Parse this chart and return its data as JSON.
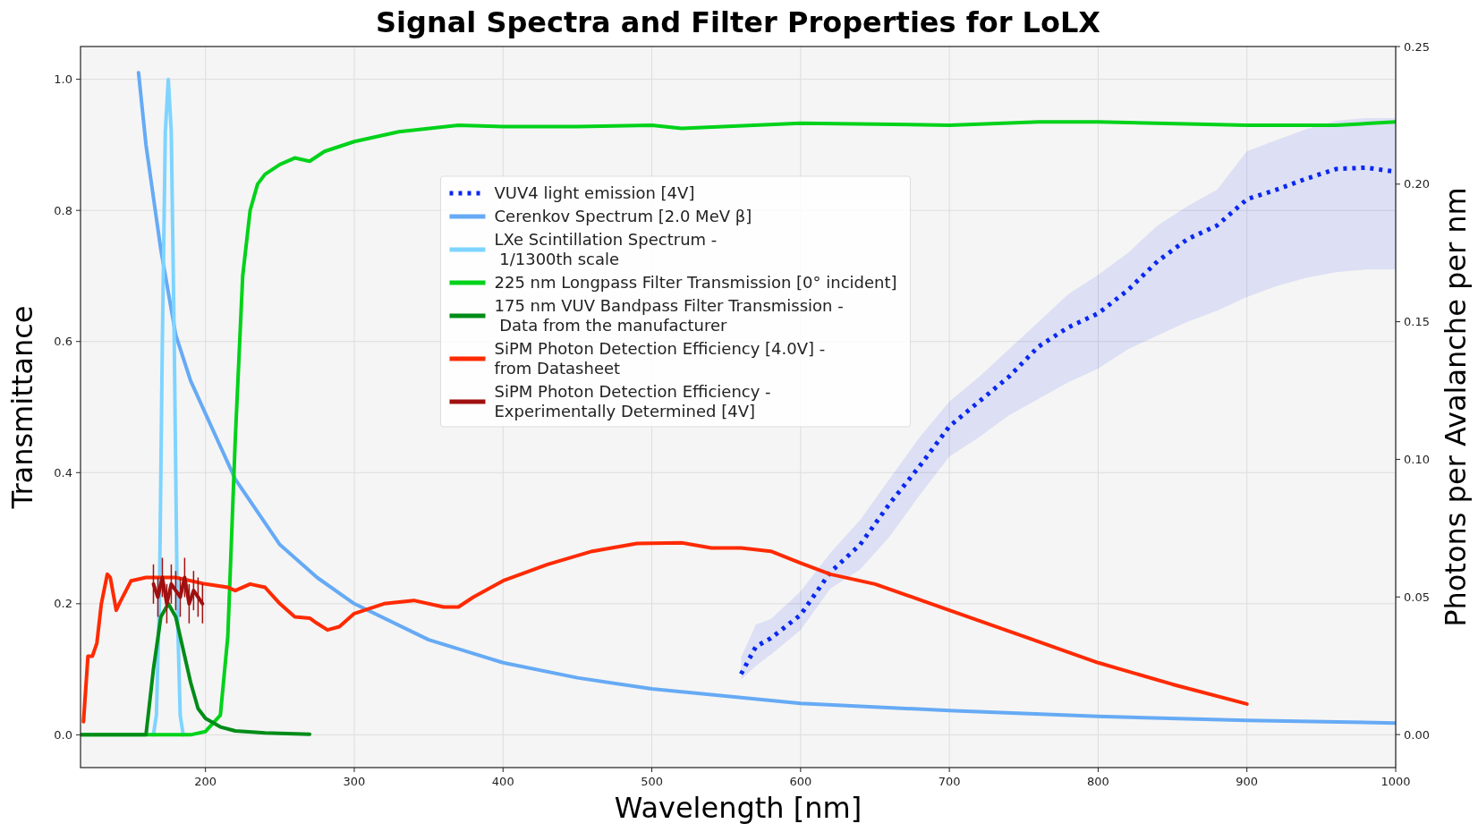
{
  "chart_data": {
    "type": "line",
    "title": "Signal Spectra and Filter Properties for LoLX",
    "xlabel": "Wavelength [nm]",
    "ylabel": "Transmittance",
    "y2label": "Photons per Avalanche per nm",
    "xlim": [
      116,
      1000
    ],
    "xticks": [
      200,
      300,
      400,
      500,
      600,
      700,
      800,
      900,
      1000
    ],
    "ylim": [
      -0.05,
      1.05
    ],
    "yticks": [
      {
        "value": 0,
        "label": "0.0"
      },
      {
        "value": 0.2,
        "label": "0.2"
      },
      {
        "value": 0.4,
        "label": "0.4"
      },
      {
        "value": 0.6,
        "label": "0.6"
      },
      {
        "value": 0.8,
        "label": "0.8"
      },
      {
        "value": 1,
        "label": "1.0"
      }
    ],
    "y2lim": [
      -0.012,
      0.25
    ],
    "y2ticks": [
      {
        "value": 0,
        "label": "0.00"
      },
      {
        "value": 0.05,
        "label": "0.05"
      },
      {
        "value": 0.1,
        "label": "0.10"
      },
      {
        "value": 0.15,
        "label": "0.15"
      },
      {
        "value": 0.2,
        "label": "0.20"
      },
      {
        "value": 0.25,
        "label": "0.25"
      }
    ],
    "grid": true,
    "legend": "top",
    "series": [
      {
        "name": "VUV4 light emission [4V]",
        "color": "#0a28f0",
        "axis": "y2",
        "line_style": "dotted",
        "x": [
          560,
          570,
          580,
          600,
          620,
          640,
          660,
          680,
          700,
          720,
          740,
          760,
          780,
          800,
          820,
          840,
          860,
          880,
          900,
          920,
          940,
          960,
          980,
          1000
        ],
        "values": [
          0.022,
          0.032,
          0.035,
          0.0435,
          0.059,
          0.069,
          0.084,
          0.0975,
          0.112,
          0.121,
          0.13,
          0.141,
          0.148,
          0.153,
          0.1615,
          0.172,
          0.18,
          0.185,
          0.1945,
          0.198,
          0.202,
          0.2055,
          0.206,
          0.2045
        ],
        "lower": [
          0.02,
          0.025,
          0.029,
          0.038,
          0.053,
          0.06,
          0.072,
          0.087,
          0.101,
          0.108,
          0.116,
          0.122,
          0.128,
          0.133,
          0.14,
          0.145,
          0.15,
          0.154,
          0.159,
          0.163,
          0.166,
          0.168,
          0.169,
          0.169
        ],
        "upper": [
          0.028,
          0.04,
          0.042,
          0.052,
          0.066,
          0.078,
          0.093,
          0.108,
          0.121,
          0.13,
          0.14,
          0.15,
          0.16,
          0.167,
          0.175,
          0.185,
          0.192,
          0.198,
          0.212,
          0.216,
          0.22,
          0.223,
          0.224,
          0.224
        ]
      },
      {
        "name": "Cerenkov Spectrum [2.0 MeV β]",
        "color": "#66aaf5",
        "x": [
          155,
          160,
          170,
          180,
          190,
          200,
          220,
          250,
          275,
          300,
          350,
          400,
          450,
          500,
          600,
          700,
          800,
          900,
          1000
        ],
        "values": [
          1.01,
          0.9,
          0.74,
          0.61,
          0.54,
          0.49,
          0.39,
          0.29,
          0.24,
          0.2,
          0.145,
          0.11,
          0.087,
          0.07,
          0.048,
          0.037,
          0.028,
          0.022,
          0.018
        ]
      },
      {
        "name": "LXe Scintillation Spectrum  -\n 1/1300th scale",
        "color": "#7fd4ff",
        "x": [
          165,
          167,
          169,
          171,
          173,
          175,
          177,
          179,
          181,
          183,
          185
        ],
        "values": [
          0,
          0.03,
          0.2,
          0.6,
          0.92,
          1.0,
          0.92,
          0.6,
          0.2,
          0.03,
          0
        ]
      },
      {
        "name": "225 nm Longpass Filter Transmission [0° incident]",
        "color": "#00d21a",
        "x": [
          116,
          190,
          200,
          210,
          215,
          220,
          225,
          230,
          235,
          240,
          250,
          260,
          270,
          280,
          300,
          330,
          370,
          400,
          450,
          500,
          520,
          600,
          700,
          760,
          800,
          900,
          960,
          1000
        ],
        "values": [
          0,
          0,
          0.005,
          0.03,
          0.15,
          0.45,
          0.7,
          0.8,
          0.84,
          0.855,
          0.87,
          0.88,
          0.875,
          0.89,
          0.905,
          0.92,
          0.93,
          0.928,
          0.928,
          0.93,
          0.925,
          0.933,
          0.93,
          0.935,
          0.935,
          0.93,
          0.93,
          0.935
        ]
      },
      {
        "name": "175 nm VUV Bandpass Filter Transmission -\n Data from the manufacturer",
        "color": "#008c18",
        "x": [
          116,
          160,
          165,
          170,
          175,
          180,
          185,
          190,
          195,
          200,
          210,
          220,
          240,
          270
        ],
        "values": [
          0,
          0,
          0.1,
          0.18,
          0.2,
          0.18,
          0.13,
          0.08,
          0.04,
          0.025,
          0.012,
          0.006,
          0.003,
          0.001
        ]
      },
      {
        "name": "SiPM Photon Detection Efficiency [4.0V] -\nfrom Datasheet",
        "color": "#ff2a00",
        "x": [
          118,
          121,
          124,
          127,
          130,
          134,
          136,
          140,
          142,
          150,
          160,
          180,
          200,
          215,
          220,
          230,
          240,
          250,
          260,
          270,
          275,
          282,
          290,
          300,
          320,
          340,
          360,
          370,
          380,
          400,
          430,
          460,
          490,
          520,
          540,
          560,
          580,
          600,
          620,
          650,
          700,
          750,
          800,
          850,
          900
        ],
        "values": [
          0.02,
          0.12,
          0.12,
          0.14,
          0.2,
          0.245,
          0.24,
          0.19,
          0.2,
          0.235,
          0.24,
          0.24,
          0.23,
          0.225,
          0.22,
          0.23,
          0.225,
          0.2,
          0.18,
          0.178,
          0.17,
          0.16,
          0.165,
          0.185,
          0.2,
          0.205,
          0.195,
          0.195,
          0.21,
          0.235,
          0.26,
          0.28,
          0.292,
          0.293,
          0.285,
          0.285,
          0.28,
          0.262,
          0.245,
          0.23,
          0.19,
          0.15,
          0.11,
          0.077,
          0.047
        ]
      },
      {
        "name": "SiPM Photon Detection Efficiency -\nExperimentally Determined [4V]",
        "color": "#a01010",
        "x": [
          165,
          168,
          171,
          174,
          177,
          180,
          183,
          186,
          189,
          192,
          195,
          198
        ],
        "values": [
          0.23,
          0.21,
          0.24,
          0.2,
          0.23,
          0.22,
          0.21,
          0.24,
          0.2,
          0.22,
          0.21,
          0.2
        ],
        "errors": [
          0.03,
          0.03,
          0.03,
          0.03,
          0.03,
          0.03,
          0.03,
          0.03,
          0.03,
          0.03,
          0.03,
          0.03
        ]
      }
    ]
  }
}
